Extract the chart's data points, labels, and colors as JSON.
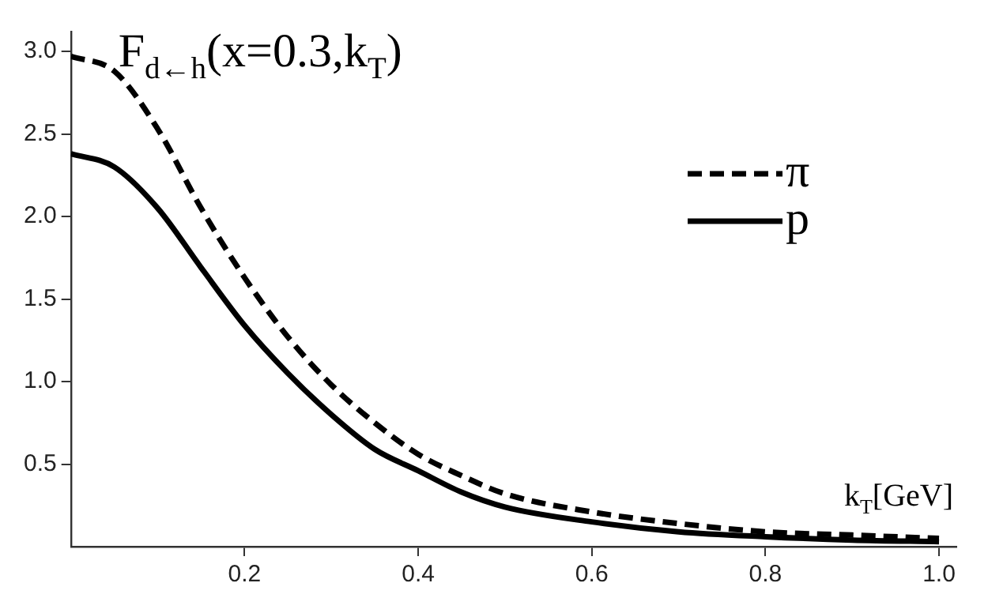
{
  "chart_data": {
    "type": "line",
    "title": "F$_{d←h}$(x=0.3,k$_{T}$)",
    "xlabel": "k$_{T}$[GeV]",
    "x": [
      0,
      0.05,
      0.1,
      0.15,
      0.2,
      0.25,
      0.3,
      0.35,
      0.4,
      0.45,
      0.5,
      0.6,
      0.7,
      0.8,
      0.9,
      1.0
    ],
    "series": [
      {
        "name": "π",
        "color": "#000000",
        "line_style": "dashed",
        "values": [
          2.97,
          2.88,
          2.53,
          2.05,
          1.63,
          1.27,
          0.98,
          0.75,
          0.56,
          0.43,
          0.32,
          0.21,
          0.14,
          0.09,
          0.07,
          0.05
        ]
      },
      {
        "name": "p",
        "color": "#000000",
        "line_style": "solid",
        "values": [
          2.38,
          2.3,
          2.05,
          1.69,
          1.34,
          1.05,
          0.8,
          0.59,
          0.46,
          0.33,
          0.24,
          0.15,
          0.09,
          0.06,
          0.04,
          0.03
        ]
      }
    ],
    "xlim": [
      0,
      1.02
    ],
    "ylim": [
      0,
      3.12
    ],
    "xticks": [
      0.2,
      0.4,
      0.6,
      0.8,
      {
        "value": 1.0,
        "label": "1.0"
      }
    ],
    "yticks": [
      0.5,
      {
        "value": 1.0,
        "label": "1.0"
      },
      1.5,
      {
        "value": 2.0,
        "label": "2.0"
      },
      2.5,
      {
        "value": 3.0,
        "label": "3.0"
      }
    ],
    "grid": false,
    "legend": "top right",
    "marker": "none"
  }
}
